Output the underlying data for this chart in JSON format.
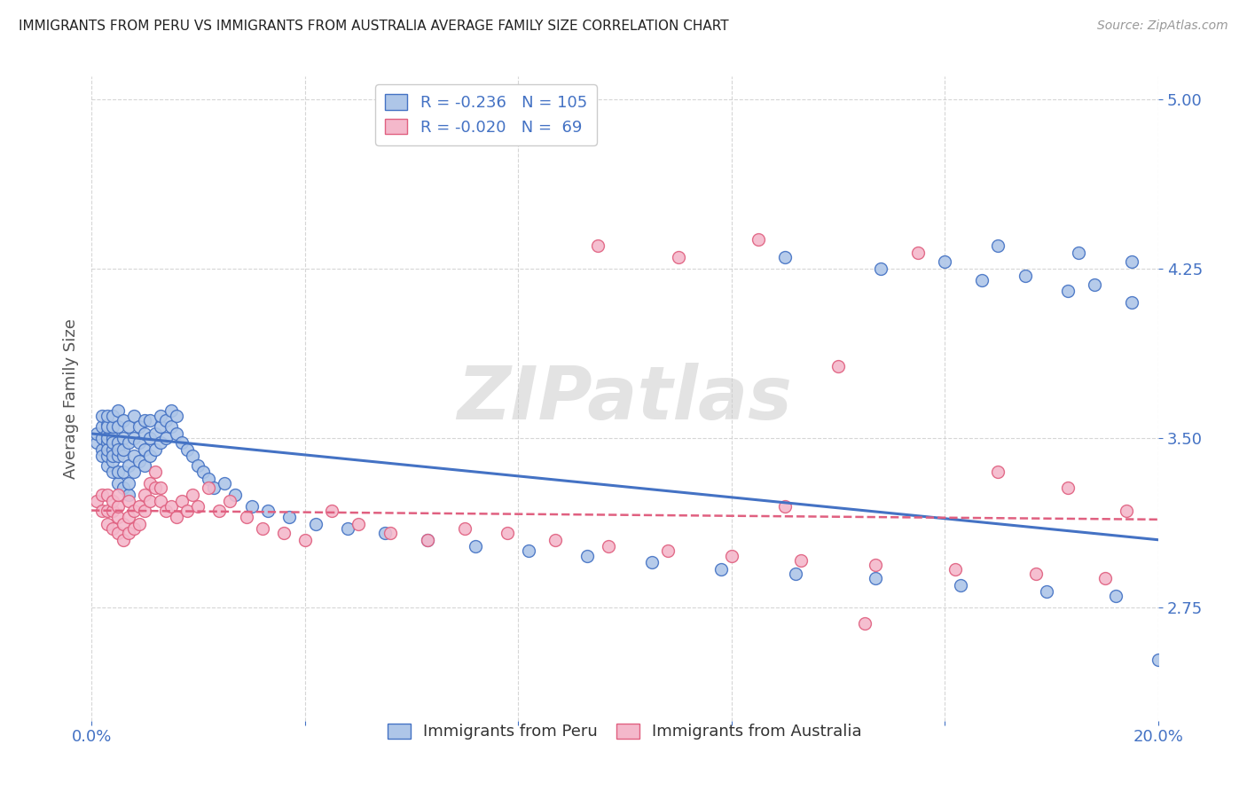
{
  "title": "IMMIGRANTS FROM PERU VS IMMIGRANTS FROM AUSTRALIA AVERAGE FAMILY SIZE CORRELATION CHART",
  "source": "Source: ZipAtlas.com",
  "ylabel": "Average Family Size",
  "xlim": [
    0.0,
    0.2
  ],
  "ylim": [
    2.25,
    5.1
  ],
  "yticks": [
    2.75,
    3.5,
    4.25,
    5.0
  ],
  "background_color": "#ffffff",
  "title_color": "#333333",
  "axis_color": "#4472c4",
  "watermark_text": "ZIPatlas",
  "peru_color": "#aec6e8",
  "peru_edge_color": "#4472c4",
  "australia_color": "#f4b8cb",
  "australia_edge_color": "#e06080",
  "peru_trendline_color": "#4472c4",
  "australia_trendline_color": "#e06080",
  "peru_R": "-0.236",
  "peru_N": "105",
  "australia_R": "-0.020",
  "australia_N": "69",
  "peru_trend_x0": 0.0,
  "peru_trend_y0": 3.52,
  "peru_trend_x1": 0.2,
  "peru_trend_y1": 3.05,
  "aus_trend_x0": 0.0,
  "aus_trend_y0": 3.18,
  "aus_trend_x1": 0.2,
  "aus_trend_y1": 3.14,
  "peru_scatter_x": [
    0.001,
    0.001,
    0.002,
    0.002,
    0.002,
    0.002,
    0.002,
    0.003,
    0.003,
    0.003,
    0.003,
    0.003,
    0.003,
    0.003,
    0.003,
    0.003,
    0.004,
    0.004,
    0.004,
    0.004,
    0.004,
    0.004,
    0.004,
    0.004,
    0.005,
    0.005,
    0.005,
    0.005,
    0.005,
    0.005,
    0.005,
    0.006,
    0.006,
    0.006,
    0.006,
    0.006,
    0.006,
    0.007,
    0.007,
    0.007,
    0.007,
    0.007,
    0.008,
    0.008,
    0.008,
    0.008,
    0.009,
    0.009,
    0.009,
    0.01,
    0.01,
    0.01,
    0.01,
    0.011,
    0.011,
    0.011,
    0.012,
    0.012,
    0.013,
    0.013,
    0.013,
    0.014,
    0.014,
    0.015,
    0.015,
    0.016,
    0.016,
    0.017,
    0.018,
    0.019,
    0.02,
    0.021,
    0.022,
    0.023,
    0.025,
    0.027,
    0.03,
    0.033,
    0.037,
    0.042,
    0.048,
    0.055,
    0.063,
    0.072,
    0.082,
    0.093,
    0.105,
    0.118,
    0.132,
    0.147,
    0.163,
    0.179,
    0.192,
    0.13,
    0.148,
    0.167,
    0.183,
    0.16,
    0.175,
    0.188,
    0.195,
    0.17,
    0.185,
    0.195,
    0.2
  ],
  "peru_scatter_y": [
    3.48,
    3.52,
    3.45,
    3.5,
    3.55,
    3.6,
    3.42,
    3.38,
    3.42,
    3.48,
    3.52,
    3.56,
    3.45,
    3.5,
    3.55,
    3.6,
    3.35,
    3.4,
    3.45,
    3.5,
    3.55,
    3.6,
    3.42,
    3.48,
    3.3,
    3.35,
    3.42,
    3.48,
    3.55,
    3.62,
    3.45,
    3.28,
    3.35,
    3.42,
    3.5,
    3.58,
    3.45,
    3.25,
    3.3,
    3.38,
    3.48,
    3.55,
    3.35,
    3.42,
    3.5,
    3.6,
    3.4,
    3.48,
    3.55,
    3.38,
    3.45,
    3.52,
    3.58,
    3.42,
    3.5,
    3.58,
    3.45,
    3.52,
    3.48,
    3.55,
    3.6,
    3.5,
    3.58,
    3.55,
    3.62,
    3.52,
    3.6,
    3.48,
    3.45,
    3.42,
    3.38,
    3.35,
    3.32,
    3.28,
    3.3,
    3.25,
    3.2,
    3.18,
    3.15,
    3.12,
    3.1,
    3.08,
    3.05,
    3.02,
    3.0,
    2.98,
    2.95,
    2.92,
    2.9,
    2.88,
    2.85,
    2.82,
    2.8,
    4.3,
    4.25,
    4.2,
    4.15,
    4.28,
    4.22,
    4.18,
    4.1,
    4.35,
    4.32,
    4.28,
    2.52
  ],
  "aus_scatter_x": [
    0.001,
    0.002,
    0.002,
    0.003,
    0.003,
    0.003,
    0.004,
    0.004,
    0.004,
    0.005,
    0.005,
    0.005,
    0.005,
    0.006,
    0.006,
    0.007,
    0.007,
    0.007,
    0.008,
    0.008,
    0.009,
    0.009,
    0.01,
    0.01,
    0.011,
    0.011,
    0.012,
    0.012,
    0.013,
    0.013,
    0.014,
    0.015,
    0.016,
    0.017,
    0.018,
    0.019,
    0.02,
    0.022,
    0.024,
    0.026,
    0.029,
    0.032,
    0.036,
    0.04,
    0.045,
    0.05,
    0.056,
    0.063,
    0.07,
    0.078,
    0.087,
    0.097,
    0.108,
    0.12,
    0.133,
    0.147,
    0.162,
    0.177,
    0.19,
    0.095,
    0.11,
    0.125,
    0.14,
    0.155,
    0.17,
    0.183,
    0.194,
    0.13,
    0.145
  ],
  "aus_scatter_y": [
    3.22,
    3.18,
    3.25,
    3.12,
    3.18,
    3.25,
    3.1,
    3.18,
    3.22,
    3.08,
    3.15,
    3.2,
    3.25,
    3.05,
    3.12,
    3.08,
    3.15,
    3.22,
    3.1,
    3.18,
    3.12,
    3.2,
    3.25,
    3.18,
    3.3,
    3.22,
    3.28,
    3.35,
    3.22,
    3.28,
    3.18,
    3.2,
    3.15,
    3.22,
    3.18,
    3.25,
    3.2,
    3.28,
    3.18,
    3.22,
    3.15,
    3.1,
    3.08,
    3.05,
    3.18,
    3.12,
    3.08,
    3.05,
    3.1,
    3.08,
    3.05,
    3.02,
    3.0,
    2.98,
    2.96,
    2.94,
    2.92,
    2.9,
    2.88,
    4.35,
    4.3,
    4.38,
    3.82,
    4.32,
    3.35,
    3.28,
    3.18,
    3.2,
    2.68
  ]
}
